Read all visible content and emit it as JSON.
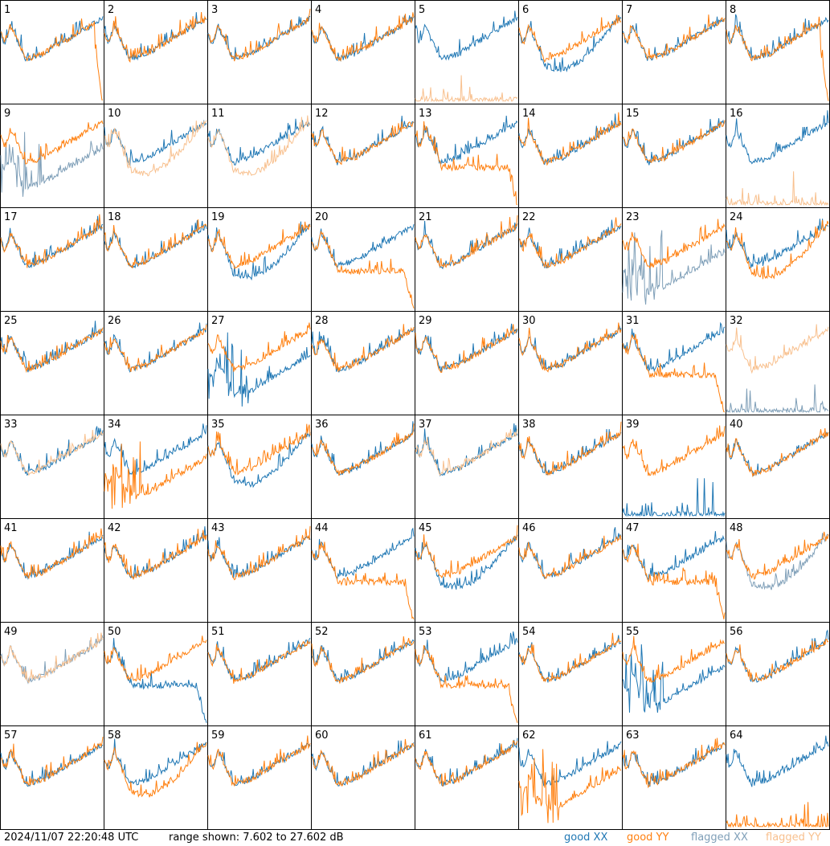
{
  "footer": {
    "timestamp": "2024/11/07 22:20:48 UTC",
    "range_text": "range shown: 7.602 to 27.602 dB"
  },
  "legend": [
    {
      "label": "good XX",
      "color": "#1f77b4"
    },
    {
      "label": "good YY",
      "color": "#ff7f0e"
    },
    {
      "label": "flagged XX",
      "color": "#7f9fb8"
    },
    {
      "label": "flagged YY",
      "color": "#f8c08e"
    }
  ],
  "chart_data": {
    "type": "line",
    "ylim": [
      7.602,
      27.602
    ],
    "units": "dB",
    "panels": [
      {
        "label": "1",
        "xx": "good",
        "yy": "good",
        "xx_prof": "normal",
        "yy_prof": "drop"
      },
      {
        "label": "2",
        "xx": "good",
        "yy": "good",
        "xx_prof": "normal",
        "yy_prof": "normal"
      },
      {
        "label": "3",
        "xx": "good",
        "yy": "good",
        "xx_prof": "normal",
        "yy_prof": "normal"
      },
      {
        "label": "4",
        "xx": "good",
        "yy": "good",
        "xx_prof": "normal",
        "yy_prof": "normal"
      },
      {
        "label": "5",
        "xx": "good",
        "yy": "flagged",
        "xx_prof": "normal",
        "yy_prof": "flat"
      },
      {
        "label": "6",
        "xx": "good",
        "yy": "good",
        "xx_prof": "low",
        "yy_prof": "normal"
      },
      {
        "label": "7",
        "xx": "good",
        "yy": "good",
        "xx_prof": "normal",
        "yy_prof": "normal"
      },
      {
        "label": "8",
        "xx": "good",
        "yy": "good",
        "xx_prof": "normal",
        "yy_prof": "drop"
      },
      {
        "label": "9",
        "xx": "flagged",
        "yy": "good",
        "xx_prof": "spiky",
        "yy_prof": "normal"
      },
      {
        "label": "10",
        "xx": "good",
        "yy": "flagged",
        "xx_prof": "normal",
        "yy_prof": "low"
      },
      {
        "label": "11",
        "xx": "good",
        "yy": "flagged",
        "xx_prof": "normal",
        "yy_prof": "low"
      },
      {
        "label": "12",
        "xx": "good",
        "yy": "good",
        "xx_prof": "normal",
        "yy_prof": "normal"
      },
      {
        "label": "13",
        "xx": "good",
        "yy": "good",
        "xx_prof": "normal",
        "yy_prof": "lowdrop"
      },
      {
        "label": "14",
        "xx": "good",
        "yy": "good",
        "xx_prof": "normal",
        "yy_prof": "normal"
      },
      {
        "label": "15",
        "xx": "good",
        "yy": "good",
        "xx_prof": "normal",
        "yy_prof": "normal"
      },
      {
        "label": "16",
        "xx": "good",
        "yy": "flagged",
        "xx_prof": "normal",
        "yy_prof": "flat"
      },
      {
        "label": "17",
        "xx": "good",
        "yy": "good",
        "xx_prof": "normal",
        "yy_prof": "normal"
      },
      {
        "label": "18",
        "xx": "good",
        "yy": "good",
        "xx_prof": "normal",
        "yy_prof": "normal"
      },
      {
        "label": "19",
        "xx": "good",
        "yy": "good",
        "xx_prof": "low",
        "yy_prof": "normal"
      },
      {
        "label": "20",
        "xx": "good",
        "yy": "good",
        "xx_prof": "normal",
        "yy_prof": "lowdrop"
      },
      {
        "label": "21",
        "xx": "good",
        "yy": "good",
        "xx_prof": "normal",
        "yy_prof": "normal"
      },
      {
        "label": "22",
        "xx": "good",
        "yy": "good",
        "xx_prof": "normal",
        "yy_prof": "normal"
      },
      {
        "label": "23",
        "xx": "flagged",
        "yy": "good",
        "xx_prof": "spiky",
        "yy_prof": "normal"
      },
      {
        "label": "24",
        "xx": "good",
        "yy": "good",
        "xx_prof": "normal",
        "yy_prof": "low"
      },
      {
        "label": "25",
        "xx": "good",
        "yy": "good",
        "xx_prof": "normal",
        "yy_prof": "normal"
      },
      {
        "label": "26",
        "xx": "good",
        "yy": "good",
        "xx_prof": "normal",
        "yy_prof": "normal"
      },
      {
        "label": "27",
        "xx": "good",
        "yy": "good",
        "xx_prof": "spiky",
        "yy_prof": "normal"
      },
      {
        "label": "28",
        "xx": "good",
        "yy": "good",
        "xx_prof": "normal",
        "yy_prof": "normal"
      },
      {
        "label": "29",
        "xx": "good",
        "yy": "good",
        "xx_prof": "normal",
        "yy_prof": "normal"
      },
      {
        "label": "30",
        "xx": "good",
        "yy": "good",
        "xx_prof": "normal",
        "yy_prof": "normal"
      },
      {
        "label": "31",
        "xx": "good",
        "yy": "good",
        "xx_prof": "normal",
        "yy_prof": "lowdrop"
      },
      {
        "label": "32",
        "xx": "flagged",
        "yy": "flagged",
        "xx_prof": "flat",
        "yy_prof": "normal"
      },
      {
        "label": "33",
        "xx": "good",
        "yy": "flagged",
        "xx_prof": "normal",
        "yy_prof": "normal"
      },
      {
        "label": "34",
        "xx": "good",
        "yy": "good",
        "xx_prof": "normal",
        "yy_prof": "spiky"
      },
      {
        "label": "35",
        "xx": "good",
        "yy": "good",
        "xx_prof": "low",
        "yy_prof": "normal"
      },
      {
        "label": "36",
        "xx": "good",
        "yy": "good",
        "xx_prof": "normal",
        "yy_prof": "normal"
      },
      {
        "label": "37",
        "xx": "good",
        "yy": "flagged",
        "xx_prof": "normal",
        "yy_prof": "normal"
      },
      {
        "label": "38",
        "xx": "good",
        "yy": "good",
        "xx_prof": "normal",
        "yy_prof": "normal"
      },
      {
        "label": "39",
        "xx": "good",
        "yy": "good",
        "xx_prof": "flat",
        "yy_prof": "normal"
      },
      {
        "label": "40",
        "xx": "good",
        "yy": "good",
        "xx_prof": "normal",
        "yy_prof": "normal"
      },
      {
        "label": "41",
        "xx": "good",
        "yy": "good",
        "xx_prof": "normal",
        "yy_prof": "normal"
      },
      {
        "label": "42",
        "xx": "good",
        "yy": "good",
        "xx_prof": "normal",
        "yy_prof": "normal"
      },
      {
        "label": "43",
        "xx": "good",
        "yy": "good",
        "xx_prof": "normal",
        "yy_prof": "normal"
      },
      {
        "label": "44",
        "xx": "good",
        "yy": "good",
        "xx_prof": "normal",
        "yy_prof": "lowdrop"
      },
      {
        "label": "45",
        "xx": "good",
        "yy": "good",
        "xx_prof": "low",
        "yy_prof": "normal"
      },
      {
        "label": "46",
        "xx": "good",
        "yy": "good",
        "xx_prof": "normal",
        "yy_prof": "normal"
      },
      {
        "label": "47",
        "xx": "good",
        "yy": "good",
        "xx_prof": "normal",
        "yy_prof": "lowdrop"
      },
      {
        "label": "48",
        "xx": "flagged",
        "yy": "good",
        "xx_prof": "low",
        "yy_prof": "normal"
      },
      {
        "label": "49",
        "xx": "flagged",
        "yy": "flagged",
        "xx_prof": "normal",
        "yy_prof": "normal"
      },
      {
        "label": "50",
        "xx": "good",
        "yy": "good",
        "xx_prof": "lowdrop",
        "yy_prof": "normal"
      },
      {
        "label": "51",
        "xx": "good",
        "yy": "good",
        "xx_prof": "normal",
        "yy_prof": "normal"
      },
      {
        "label": "52",
        "xx": "good",
        "yy": "good",
        "xx_prof": "normal",
        "yy_prof": "normal"
      },
      {
        "label": "53",
        "xx": "good",
        "yy": "good",
        "xx_prof": "normal",
        "yy_prof": "lowdrop"
      },
      {
        "label": "54",
        "xx": "good",
        "yy": "good",
        "xx_prof": "normal",
        "yy_prof": "normal"
      },
      {
        "label": "55",
        "xx": "good",
        "yy": "good",
        "xx_prof": "spiky",
        "yy_prof": "normal"
      },
      {
        "label": "56",
        "xx": "good",
        "yy": "good",
        "xx_prof": "normal",
        "yy_prof": "normal"
      },
      {
        "label": "57",
        "xx": "good",
        "yy": "good",
        "xx_prof": "normal",
        "yy_prof": "normal"
      },
      {
        "label": "58",
        "xx": "good",
        "yy": "good",
        "xx_prof": "normal",
        "yy_prof": "low"
      },
      {
        "label": "59",
        "xx": "good",
        "yy": "good",
        "xx_prof": "normal",
        "yy_prof": "normal"
      },
      {
        "label": "60",
        "xx": "good",
        "yy": "good",
        "xx_prof": "normal",
        "yy_prof": "normal"
      },
      {
        "label": "61",
        "xx": "good",
        "yy": "good",
        "xx_prof": "normal",
        "yy_prof": "normal"
      },
      {
        "label": "62",
        "xx": "good",
        "yy": "good",
        "xx_prof": "normal",
        "yy_prof": "spiky"
      },
      {
        "label": "63",
        "xx": "good",
        "yy": "good",
        "xx_prof": "normal",
        "yy_prof": "normal"
      },
      {
        "label": "64",
        "xx": "good",
        "yy": "good",
        "xx_prof": "normal",
        "yy_prof": "flat"
      }
    ]
  }
}
